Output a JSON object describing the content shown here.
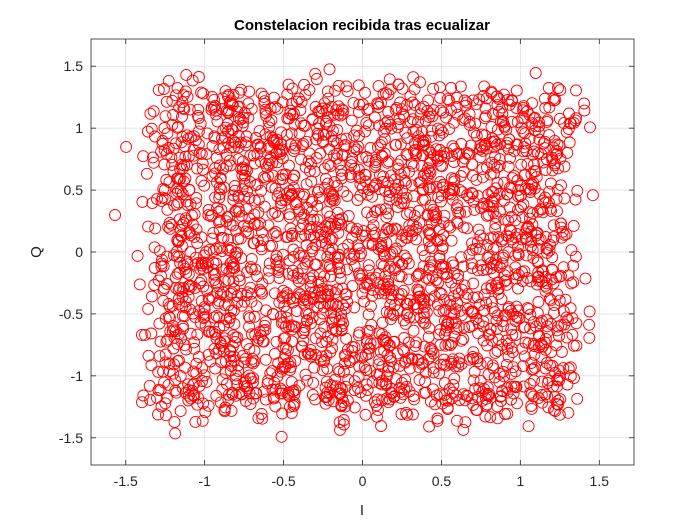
{
  "chart_data": {
    "type": "scatter",
    "title": "Constelacion recibida tras ecualizar",
    "xlabel": "I",
    "ylabel": "Q",
    "xlim": [
      -1.72,
      1.72
    ],
    "ylim": [
      -1.72,
      1.72
    ],
    "xticks": [
      -1.5,
      -1,
      -0.5,
      0,
      0.5,
      1,
      1.5
    ],
    "yticks": [
      -1.5,
      -1,
      -0.5,
      0,
      0.5,
      1,
      1.5
    ],
    "xtick_labels": [
      "-1.5",
      "-1",
      "-0.5",
      "0",
      "0.5",
      "1",
      "1.5"
    ],
    "ytick_labels": [
      "-1.5",
      "-1",
      "-0.5",
      "0",
      "0.5",
      "1",
      "1.5"
    ],
    "grid": true,
    "marker": "circle-open",
    "marker_color": "#ff0000",
    "constellation_levels": [
      -1.15,
      -0.82,
      -0.49,
      -0.16,
      0.16,
      0.49,
      0.82,
      1.15
    ],
    "noise_std": 0.12,
    "points_per_symbol": 40
  }
}
